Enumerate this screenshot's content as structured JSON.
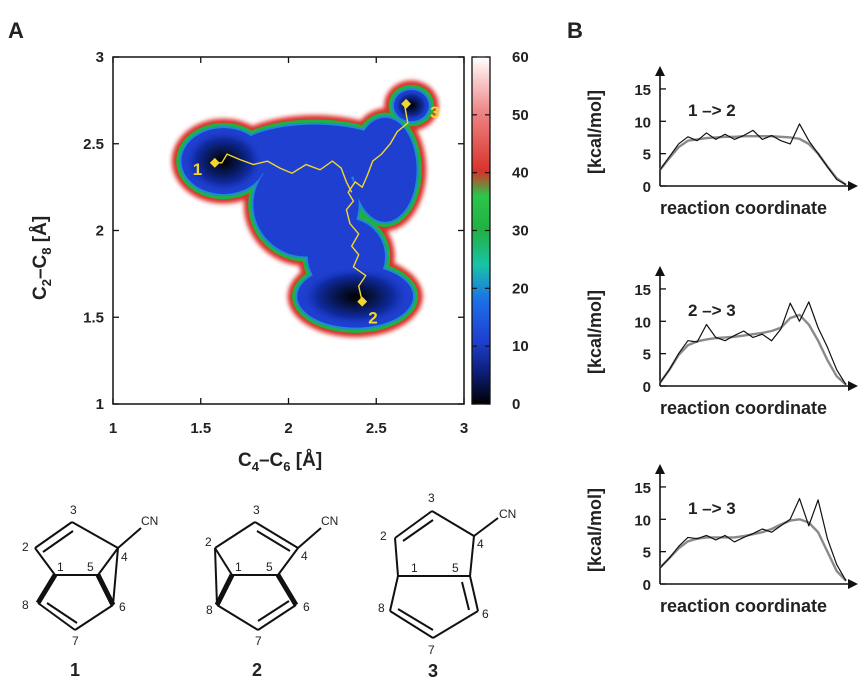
{
  "panels": {
    "a": "A",
    "b": "B"
  },
  "colors": {
    "ring_fill": "#d8322a",
    "green": "#21b043",
    "blue": "#1f3fd0",
    "navy": "#05123f",
    "path": "#f3d72a",
    "profile_raw": "#111111",
    "profile_smooth": "#8a8a8a"
  },
  "chart_data": [
    {
      "type": "heatmap",
      "xlabel": {
        "main": "C",
        "sub1": "4",
        "dash": "–",
        "main2": "C",
        "sub2": "6",
        "unit": " [Å]"
      },
      "ylabel": {
        "main": "C",
        "sub1": "2",
        "dash": "–",
        "main2": "C",
        "sub2": "8",
        "unit": " [Å]"
      },
      "xlim": [
        1,
        3
      ],
      "ylim": [
        1,
        3
      ],
      "x_ticks": [
        "1",
        "1.5",
        "2",
        "2.5",
        "3"
      ],
      "y_ticks": [
        "1",
        "1.5",
        "2",
        "2.5",
        "3"
      ],
      "colorbar": {
        "range": [
          0,
          60
        ],
        "ticks": [
          "0",
          "10",
          "20",
          "30",
          "40",
          "50",
          "60"
        ]
      },
      "minima": [
        {
          "label": "1",
          "x": 1.58,
          "y": 2.39
        },
        {
          "label": "2",
          "x": 2.42,
          "y": 1.59
        },
        {
          "label": "3",
          "x": 2.67,
          "y": 2.73
        }
      ],
      "path": [
        [
          2.42,
          1.59
        ],
        [
          2.4,
          1.68
        ],
        [
          2.44,
          1.74
        ],
        [
          2.37,
          1.79
        ],
        [
          2.4,
          1.86
        ],
        [
          2.36,
          1.91
        ],
        [
          2.4,
          1.98
        ],
        [
          2.35,
          2.04
        ],
        [
          2.33,
          2.12
        ],
        [
          2.37,
          2.17
        ],
        [
          2.34,
          2.22
        ],
        [
          2.38,
          2.28
        ],
        [
          2.42,
          2.25
        ],
        [
          2.45,
          2.32
        ],
        [
          2.48,
          2.4
        ],
        [
          2.53,
          2.44
        ],
        [
          2.58,
          2.5
        ],
        [
          2.62,
          2.57
        ],
        [
          2.68,
          2.62
        ],
        [
          2.66,
          2.73
        ],
        null,
        [
          2.36,
          2.22
        ],
        [
          2.33,
          2.28
        ],
        [
          2.3,
          2.36
        ],
        [
          2.25,
          2.4
        ],
        [
          2.18,
          2.35
        ],
        [
          2.1,
          2.38
        ],
        [
          2.02,
          2.33
        ],
        [
          1.95,
          2.36
        ],
        [
          1.88,
          2.4
        ],
        [
          1.8,
          2.38
        ],
        [
          1.72,
          2.41
        ],
        [
          1.65,
          2.44
        ],
        [
          1.62,
          2.39
        ],
        [
          1.58,
          2.39
        ]
      ],
      "regions": [
        {
          "name": "basin-1",
          "cx": 1.63,
          "cy": 2.4,
          "rx": 0.24,
          "ry": 0.19
        },
        {
          "name": "basin-2",
          "cx": 2.38,
          "cy": 1.62,
          "rx": 0.33,
          "ry": 0.18
        },
        {
          "name": "basin-3",
          "cx": 2.7,
          "cy": 2.72,
          "rx": 0.1,
          "ry": 0.09
        },
        {
          "name": "valley-12",
          "cx": 2.1,
          "cy": 2.15,
          "rx": 0.3,
          "ry": 0.3
        },
        {
          "name": "valley-23",
          "cx": 2.55,
          "cy": 2.35,
          "rx": 0.18,
          "ry": 0.3
        },
        {
          "name": "valley-13",
          "cx": 2.15,
          "cy": 2.45,
          "rx": 0.45,
          "ry": 0.16
        },
        {
          "name": "valley-2",
          "cx": 2.33,
          "cy": 1.85,
          "rx": 0.22,
          "ry": 0.22
        }
      ]
    },
    {
      "type": "line",
      "title": "1 –> 2",
      "xlabel": "reaction coordinate",
      "ylabel": "[kcal/mol]",
      "ylim": [
        0,
        17
      ],
      "y_ticks": [
        "0",
        "5",
        "10",
        "15"
      ],
      "x": [
        0,
        0.05,
        0.1,
        0.15,
        0.2,
        0.25,
        0.3,
        0.35,
        0.4,
        0.45,
        0.5,
        0.55,
        0.6,
        0.65,
        0.7,
        0.75,
        0.8,
        0.85,
        0.9,
        0.95,
        1.0
      ],
      "series": [
        {
          "values": [
            2.5,
            4.5,
            6.5,
            7.6,
            7.0,
            8.2,
            7.2,
            8.0,
            7.2,
            7.8,
            8.6,
            7.2,
            7.8,
            7.0,
            6.5,
            9.6,
            7.0,
            5.0,
            3.0,
            1.0,
            0.2
          ]
        },
        {
          "values": [
            2.5,
            4.3,
            6.0,
            7.0,
            7.2,
            7.4,
            7.5,
            7.6,
            7.6,
            7.7,
            7.7,
            7.7,
            7.7,
            7.6,
            7.5,
            7.3,
            6.5,
            5.0,
            3.0,
            1.2,
            0.2
          ]
        }
      ]
    },
    {
      "type": "line",
      "title": "2 –> 3",
      "xlabel": "reaction coordinate",
      "ylabel": "[kcal/mol]",
      "ylim": [
        0,
        17
      ],
      "y_ticks": [
        "0",
        "5",
        "10",
        "15"
      ],
      "x": [
        0,
        0.05,
        0.1,
        0.15,
        0.2,
        0.25,
        0.3,
        0.35,
        0.4,
        0.45,
        0.5,
        0.55,
        0.6,
        0.65,
        0.7,
        0.75,
        0.8,
        0.85,
        0.9,
        0.95,
        1.0
      ],
      "series": [
        {
          "values": [
            0.5,
            2.5,
            5.0,
            7.0,
            6.8,
            9.5,
            7.5,
            7.0,
            7.8,
            8.5,
            7.5,
            8.0,
            7.0,
            8.8,
            12.8,
            10.0,
            13.0,
            9.0,
            6.0,
            2.5,
            0.2
          ]
        },
        {
          "values": [
            0.5,
            2.5,
            4.8,
            6.3,
            6.9,
            7.2,
            7.4,
            7.5,
            7.6,
            7.8,
            8.0,
            8.2,
            8.5,
            9.0,
            10.5,
            11.0,
            9.5,
            7.0,
            4.0,
            1.5,
            0.2
          ]
        }
      ]
    },
    {
      "type": "line",
      "title": "1 –> 3",
      "xlabel": "reaction coordinate",
      "ylabel": "[kcal/mol]",
      "ylim": [
        0,
        17
      ],
      "y_ticks": [
        "0",
        "5",
        "10",
        "15"
      ],
      "x": [
        0,
        0.05,
        0.1,
        0.15,
        0.2,
        0.25,
        0.3,
        0.35,
        0.4,
        0.45,
        0.5,
        0.55,
        0.6,
        0.65,
        0.7,
        0.75,
        0.8,
        0.85,
        0.9,
        0.95,
        1.0
      ],
      "series": [
        {
          "values": [
            2.5,
            4.0,
            5.8,
            7.2,
            7.0,
            7.5,
            6.8,
            7.5,
            6.5,
            7.2,
            7.8,
            8.5,
            8.0,
            9.0,
            10.0,
            13.2,
            9.0,
            13.0,
            7.0,
            3.0,
            0.5
          ]
        },
        {
          "values": [
            2.5,
            4.0,
            5.5,
            6.6,
            7.0,
            7.2,
            7.2,
            7.2,
            7.2,
            7.4,
            7.7,
            8.0,
            8.5,
            9.2,
            9.8,
            10.0,
            9.5,
            8.0,
            5.0,
            2.0,
            0.5
          ]
        }
      ]
    }
  ],
  "molecules": [
    {
      "name": "1",
      "atoms": [
        "1",
        "2",
        "3",
        "4",
        "5",
        "6",
        "7",
        "8"
      ],
      "substituent": "CN"
    },
    {
      "name": "2",
      "atoms": [
        "1",
        "2",
        "3",
        "4",
        "5",
        "6",
        "7",
        "8"
      ],
      "substituent": "CN"
    },
    {
      "name": "3",
      "atoms": [
        "1",
        "2",
        "3",
        "4",
        "5",
        "6",
        "7",
        "8"
      ],
      "substituent": "CN"
    }
  ]
}
